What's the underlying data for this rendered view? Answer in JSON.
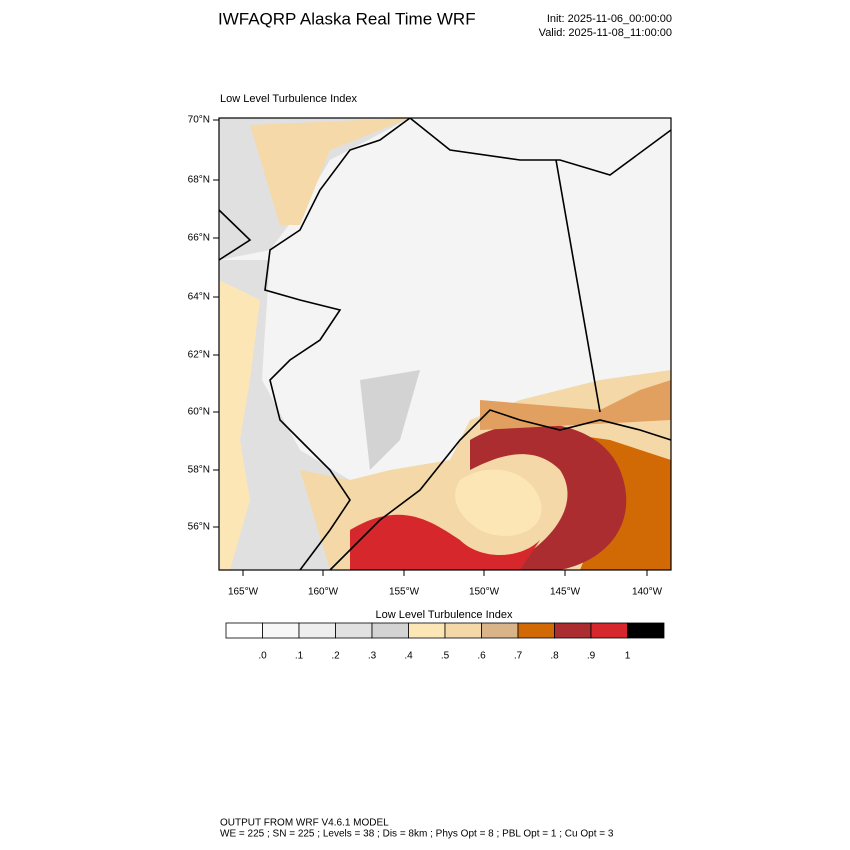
{
  "header": {
    "title": "IWFAQRP Alaska Real Time WRF",
    "init": "Init: 2025-11-06_00:00:00",
    "valid": "Valid: 2025-11-08_11:00:00"
  },
  "map": {
    "title": "Low Level Turbulence Index",
    "lat_labels": [
      "70°N",
      "68°N",
      "66°N",
      "64°N",
      "62°N",
      "60°N",
      "58°N",
      "56°N"
    ],
    "lon_labels": [
      "165°W",
      "160°W",
      "155°W",
      "150°W",
      "145°W",
      "140°W"
    ]
  },
  "colorbar": {
    "title": "Low Level Turbulence Index",
    "colors": [
      "#ffffff",
      "#f7f7f7",
      "#eeeeee",
      "#e1e1e1",
      "#d3d3d3",
      "#fde6b6",
      "#f4d8a8",
      "#d8b488",
      "#d16a04",
      "#ab2d30",
      "#d6282c",
      "#000000"
    ],
    "labels": [
      ".0",
      ".1",
      ".2",
      ".3",
      ".4",
      ".5",
      ".6",
      ".7",
      ".8",
      ".9",
      "1"
    ]
  },
  "footer": {
    "line1": "OUTPUT FROM WRF V4.6.1 MODEL",
    "line2": "WE = 225 ; SN = 225 ; Levels = 38 ; Dis = 8km ; Phys Opt = 8 ; PBL Opt = 1 ; Cu Opt = 3"
  }
}
